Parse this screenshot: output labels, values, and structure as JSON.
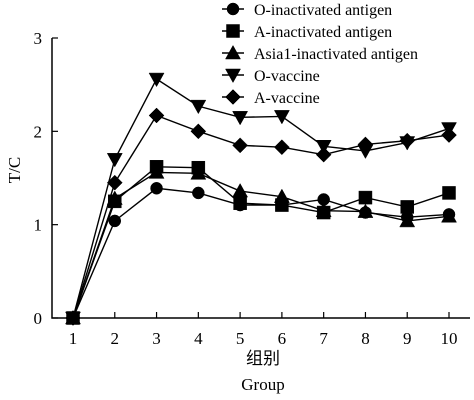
{
  "chart_data": {
    "type": "line",
    "x": [
      1,
      2,
      3,
      4,
      5,
      6,
      7,
      8,
      9,
      10
    ],
    "series": [
      {
        "name": "O-inactivated antigen",
        "marker": "circle",
        "values": [
          0,
          1.04,
          1.39,
          1.34,
          1.21,
          1.21,
          1.27,
          1.13,
          1.08,
          1.11
        ]
      },
      {
        "name": "A-inactivated antigen",
        "marker": "square",
        "values": [
          0,
          1.25,
          1.62,
          1.61,
          1.23,
          1.21,
          1.13,
          1.29,
          1.19,
          1.34
        ]
      },
      {
        "name": "Asia1-inactivated antigen",
        "marker": "triangle-up",
        "values": [
          0,
          1.28,
          1.56,
          1.55,
          1.36,
          1.3,
          1.15,
          1.14,
          1.04,
          1.09
        ]
      },
      {
        "name": "O-vaccine",
        "marker": "triangle-down",
        "values": [
          0,
          1.7,
          2.56,
          2.27,
          2.15,
          2.16,
          1.84,
          1.79,
          1.88,
          2.03
        ]
      },
      {
        "name": "A-vaccine",
        "marker": "diamond",
        "values": [
          0,
          1.45,
          2.17,
          2.0,
          1.85,
          1.83,
          1.75,
          1.86,
          1.9,
          1.96
        ]
      }
    ],
    "xlabel": "组别",
    "xlabel_en": "Group",
    "ylabel": "T/C",
    "xlim": [
      1,
      10
    ],
    "ylim": [
      0,
      3
    ],
    "x_ticks": [
      "1",
      "2",
      "3",
      "4",
      "5",
      "6",
      "7",
      "8",
      "9",
      "10"
    ],
    "y_ticks": [
      "0",
      "1",
      "2",
      "3"
    ],
    "legend_position": "top-right",
    "grid": false
  }
}
